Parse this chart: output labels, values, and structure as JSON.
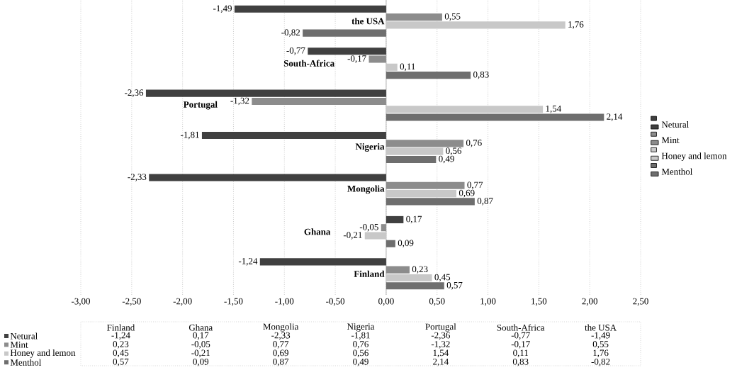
{
  "chart_data": {
    "type": "bar",
    "orientation": "horizontal",
    "categories": [
      "the USA",
      "South-Africa",
      "Portugal",
      "Nigeria",
      "Mongolia",
      "Ghana",
      "Finland"
    ],
    "series": [
      {
        "name": "Netural",
        "color": "#404040",
        "values": [
          -1.49,
          -0.77,
          -2.36,
          -1.81,
          -2.33,
          0.17,
          -1.24
        ],
        "value_labels": [
          "-1,49",
          "-0,77",
          "-2,36",
          "-1,81",
          "-2,33",
          "0,17",
          "-1,24"
        ]
      },
      {
        "name": "Mint",
        "color": "#8c8c8c",
        "values": [
          0.55,
          -0.17,
          -1.32,
          0.76,
          0.77,
          -0.05,
          0.23
        ],
        "value_labels": [
          "0,55",
          "-0,17",
          "-1,32",
          "0,76",
          "0,77",
          "-0,05",
          "0,23"
        ]
      },
      {
        "name": "Honey and lemon",
        "color": "#c8c8c8",
        "values": [
          1.76,
          0.11,
          1.54,
          0.56,
          0.69,
          -0.21,
          0.45
        ],
        "value_labels": [
          "1,76",
          "0,11",
          "1,54",
          "0,56",
          "0,69",
          "-0,21",
          "0,45"
        ]
      },
      {
        "name": "Menthol",
        "color": "#6e6e6e",
        "values": [
          -0.82,
          0.83,
          2.14,
          0.49,
          0.87,
          0.09,
          0.57
        ],
        "value_labels": [
          "-0,82",
          "0,83",
          "2,14",
          "0,49",
          "0,87",
          "0,09",
          "0,57"
        ]
      }
    ],
    "xlim": [
      -3,
      2.5
    ],
    "xticks": [
      {
        "value": -3,
        "label": "-3,00"
      },
      {
        "value": -2.5,
        "label": "-2,50"
      },
      {
        "value": -2,
        "label": "-2,00"
      },
      {
        "value": -1.5,
        "label": "-1,50"
      },
      {
        "value": -1,
        "label": "-1,00"
      },
      {
        "value": -0.5,
        "label": "-0,50"
      },
      {
        "value": 0,
        "label": "0,00"
      },
      {
        "value": 0.5,
        "label": "0,50"
      },
      {
        "value": 1,
        "label": "1,00"
      },
      {
        "value": 1.5,
        "label": "1,50"
      },
      {
        "value": 2,
        "label": "2,00"
      },
      {
        "value": 2.5,
        "label": "2,50"
      }
    ],
    "grid": true,
    "legend": "right"
  }
}
